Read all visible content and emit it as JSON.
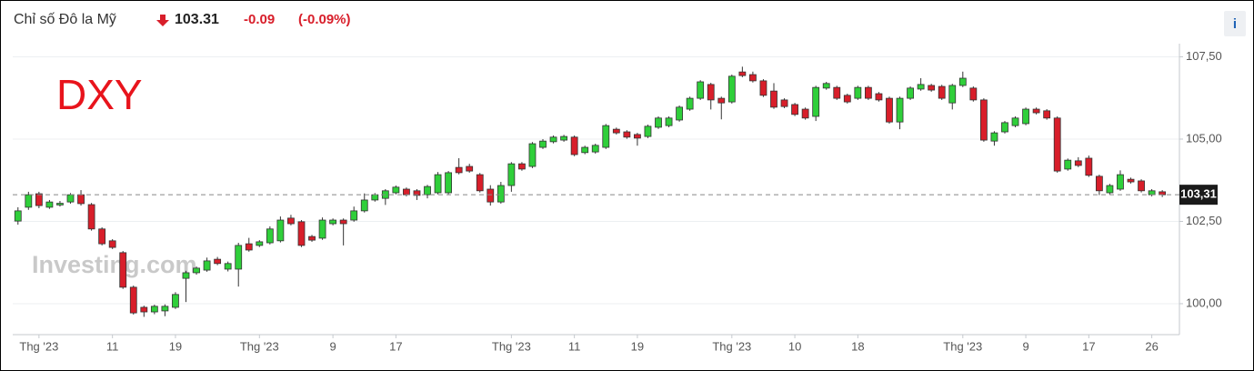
{
  "header": {
    "name": "Chỉ số Đô la Mỹ",
    "price": "103.31",
    "change": "-0.09",
    "change_pct": "(-0.09%)",
    "info": "i"
  },
  "chart_data": {
    "type": "candlestick",
    "annotation": "DXY",
    "watermark": "Investing.com",
    "up_color": "#2fcf3a",
    "down_color": "#d81e2a",
    "open": [
      102.51,
      102.93,
      103.34,
      102.93,
      103.0,
      103.09,
      103.31,
      103.01,
      102.27,
      101.91,
      101.55,
      100.5,
      99.89,
      99.75,
      99.78,
      99.89,
      100.77,
      100.94,
      101.02,
      101.35,
      101.05,
      101.05,
      101.82,
      101.77,
      101.85,
      101.91,
      102.6,
      102.49,
      102.04,
      101.99,
      102.43,
      102.54,
      102.54,
      102.82,
      103.15,
      103.2,
      103.37,
      103.48,
      103.43,
      103.31,
      103.37,
      103.37,
      104.14,
      104.17,
      103.92,
      103.48,
      103.09,
      103.59,
      104.25,
      104.17,
      104.75,
      104.92,
      104.97,
      105.06,
      104.59,
      104.61,
      104.75,
      105.3,
      105.22,
      105.14,
      105.08,
      105.36,
      105.41,
      105.58,
      105.91,
      106.24,
      106.66,
      106.24,
      106.13,
      107.04,
      106.96,
      106.77,
      106.46,
      106.19,
      106.05,
      105.91,
      105.69,
      106.55,
      106.57,
      106.33,
      106.24,
      106.57,
      106.38,
      106.24,
      105.52,
      106.24,
      106.52,
      106.63,
      106.6,
      106.1,
      106.63,
      106.55,
      106.19,
      104.94,
      105.22,
      105.41,
      105.47,
      105.91,
      105.86,
      105.64,
      104.09,
      104.34,
      104.42,
      103.87,
      103.37,
      103.48,
      103.78,
      103.73,
      103.31,
      103.4
    ],
    "high": [
      102.93,
      103.4,
      103.4,
      103.15,
      103.12,
      103.36,
      103.45,
      103.06,
      102.32,
      101.96,
      101.6,
      100.55,
      99.94,
      99.97,
      99.98,
      100.35,
      101.0,
      101.13,
      101.4,
      101.42,
      101.28,
      101.85,
      102.0,
      101.93,
      102.35,
      102.65,
      102.7,
      102.54,
      102.09,
      102.62,
      102.59,
      102.59,
      102.95,
      103.35,
      103.36,
      103.48,
      103.59,
      103.53,
      103.48,
      103.61,
      104.0,
      104.03,
      104.42,
      104.25,
      103.97,
      103.6,
      103.7,
      104.3,
      104.3,
      104.91,
      105.0,
      105.11,
      105.13,
      105.11,
      104.8,
      104.86,
      105.46,
      105.35,
      105.27,
      105.19,
      105.44,
      105.69,
      105.69,
      106.02,
      106.29,
      106.79,
      106.71,
      106.29,
      106.96,
      107.2,
      107.05,
      106.82,
      106.7,
      106.24,
      106.1,
      105.96,
      106.62,
      106.74,
      106.62,
      106.38,
      106.62,
      106.62,
      106.43,
      106.29,
      106.29,
      106.6,
      106.85,
      106.68,
      106.65,
      106.68,
      107.05,
      106.6,
      106.24,
      105.24,
      105.55,
      105.69,
      105.96,
      105.96,
      105.91,
      105.69,
      104.41,
      104.45,
      104.5,
      103.92,
      103.64,
      104.05,
      103.83,
      103.78,
      103.48,
      103.45
    ],
    "low": [
      102.4,
      102.85,
      102.9,
      102.88,
      102.95,
      103.04,
      102.98,
      102.22,
      101.77,
      101.66,
      100.45,
      99.67,
      99.6,
      99.68,
      99.62,
      99.84,
      100.05,
      100.88,
      100.97,
      101.17,
      100.98,
      100.52,
      101.58,
      101.72,
      101.8,
      101.86,
      102.38,
      101.72,
      101.88,
      101.94,
      102.38,
      101.77,
      102.49,
      102.77,
      103.1,
      103.0,
      103.32,
      103.26,
      103.15,
      103.2,
      103.32,
      103.32,
      103.93,
      103.98,
      103.38,
      102.98,
      103.04,
      103.4,
      104.04,
      104.12,
      104.7,
      104.87,
      104.92,
      104.48,
      104.54,
      104.56,
      104.7,
      105.14,
      105.01,
      104.8,
      105.03,
      105.31,
      105.36,
      105.53,
      105.86,
      106.19,
      105.9,
      105.6,
      106.08,
      106.88,
      106.72,
      106.28,
      105.92,
      105.94,
      105.7,
      105.59,
      105.55,
      106.5,
      106.19,
      106.08,
      106.19,
      106.19,
      106.14,
      105.47,
      105.3,
      106.19,
      106.47,
      106.44,
      106.19,
      105.9,
      106.58,
      106.14,
      104.92,
      104.8,
      105.17,
      105.36,
      105.42,
      105.75,
      105.59,
      103.98,
      104.04,
      104.15,
      103.85,
      103.3,
      103.32,
      103.43,
      103.65,
      103.38,
      103.26,
      103.24
    ],
    "close": [
      102.82,
      103.31,
      102.98,
      103.09,
      103.05,
      103.31,
      103.04,
      102.27,
      101.82,
      101.71,
      100.5,
      99.72,
      99.75,
      99.92,
      99.92,
      100.28,
      100.94,
      101.08,
      101.3,
      101.22,
      101.22,
      101.77,
      101.63,
      101.88,
      102.27,
      102.54,
      102.43,
      101.77,
      101.93,
      102.54,
      102.54,
      102.43,
      102.82,
      103.15,
      103.31,
      103.43,
      103.54,
      103.31,
      103.29,
      103.56,
      103.92,
      103.98,
      103.98,
      104.03,
      103.43,
      103.09,
      103.59,
      104.25,
      104.09,
      104.86,
      104.94,
      105.06,
      105.08,
      104.53,
      104.75,
      104.81,
      105.41,
      105.19,
      105.06,
      105.03,
      105.39,
      105.64,
      105.64,
      105.97,
      106.24,
      106.74,
      106.19,
      106.1,
      106.91,
      106.93,
      106.77,
      106.33,
      105.97,
      105.99,
      105.75,
      105.64,
      106.57,
      106.69,
      106.24,
      106.13,
      106.57,
      106.24,
      106.19,
      105.52,
      106.24,
      106.55,
      106.66,
      106.49,
      106.24,
      106.63,
      106.85,
      106.19,
      104.97,
      105.19,
      105.5,
      105.64,
      105.91,
      105.8,
      105.64,
      104.03,
      104.36,
      104.2,
      103.9,
      103.43,
      103.59,
      103.92,
      103.7,
      103.43,
      103.43,
      103.31
    ],
    "last_price": {
      "value": 103.31,
      "label": "103,31"
    },
    "xlim": [
      -0.5,
      110.2
    ],
    "xticks": [
      {
        "value": 2,
        "label": "Thg '23"
      },
      {
        "value": 9,
        "label": "11"
      },
      {
        "value": 15,
        "label": "19"
      },
      {
        "value": 23,
        "label": "Thg '23"
      },
      {
        "value": 30,
        "label": "9"
      },
      {
        "value": 36,
        "label": "17"
      },
      {
        "value": 47,
        "label": "Thg '23"
      },
      {
        "value": 53,
        "label": "11"
      },
      {
        "value": 59,
        "label": "19"
      },
      {
        "value": 68,
        "label": "Thg '23"
      },
      {
        "value": 74,
        "label": "10"
      },
      {
        "value": 80,
        "label": "18"
      },
      {
        "value": 90,
        "label": "Thg '23"
      },
      {
        "value": 96,
        "label": "9"
      },
      {
        "value": 102,
        "label": "17"
      },
      {
        "value": 108,
        "label": "26"
      }
    ],
    "ylim": [
      99.06,
      107.9
    ],
    "yticks": [
      {
        "value": 100,
        "label": "100,00"
      },
      {
        "value": 102.5,
        "label": "102,50"
      },
      {
        "value": 105,
        "label": "105,00"
      },
      {
        "value": 107.5,
        "label": "107,50"
      }
    ],
    "grid": true
  }
}
